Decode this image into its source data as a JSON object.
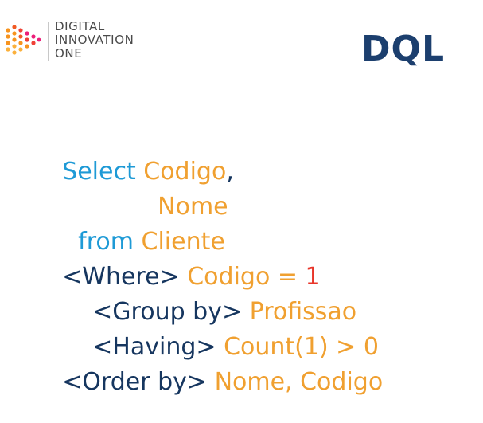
{
  "brand": {
    "name_lines": [
      "DIGITAL",
      "INNOVATION",
      "ONE"
    ],
    "logo_icon": "dotted-arrow-logo-icon",
    "colors": {
      "logo_orange": "#f7931e",
      "logo_red": "#ef4136",
      "logo_pink": "#ec1e79",
      "logo_yellow": "#fbb03b"
    }
  },
  "slide": {
    "title": "DQL",
    "title_color": "#1c3f6e"
  },
  "code_lines": [
    {
      "tokens": [
        {
          "text": "Select ",
          "style": "kw-blue"
        },
        {
          "text": "Codigo",
          "style": "id-orange"
        },
        {
          "text": ",",
          "style": "kw-navy"
        }
      ]
    },
    {
      "tokens": [
        {
          "text": "Nome",
          "style": "id-orange"
        }
      ]
    },
    {
      "tokens": [
        {
          "text": "from ",
          "style": "kw-blue"
        },
        {
          "text": "Cliente",
          "style": "id-orange"
        }
      ]
    },
    {
      "tokens": [
        {
          "text": "<Where> ",
          "style": "kw-navy"
        },
        {
          "text": "Codigo = ",
          "style": "id-orange"
        },
        {
          "text": "1",
          "style": "num-red"
        }
      ]
    },
    {
      "tokens": [
        {
          "text": "<Group by> ",
          "style": "kw-navy"
        },
        {
          "text": "Profissao",
          "style": "id-orange"
        }
      ]
    },
    {
      "tokens": [
        {
          "text": "<Having> ",
          "style": "kw-navy"
        },
        {
          "text": "Count(1) > 0",
          "style": "id-orange"
        }
      ]
    },
    {
      "tokens": [
        {
          "text": "<Order by> ",
          "style": "kw-navy"
        },
        {
          "text": "Nome, Codigo",
          "style": "id-orange"
        }
      ]
    }
  ],
  "colors": {
    "keyword_blue": "#1e9ad6",
    "keyword_navy": "#16365f",
    "identifier_orange": "#f0a030",
    "number_red": "#e8352a"
  }
}
